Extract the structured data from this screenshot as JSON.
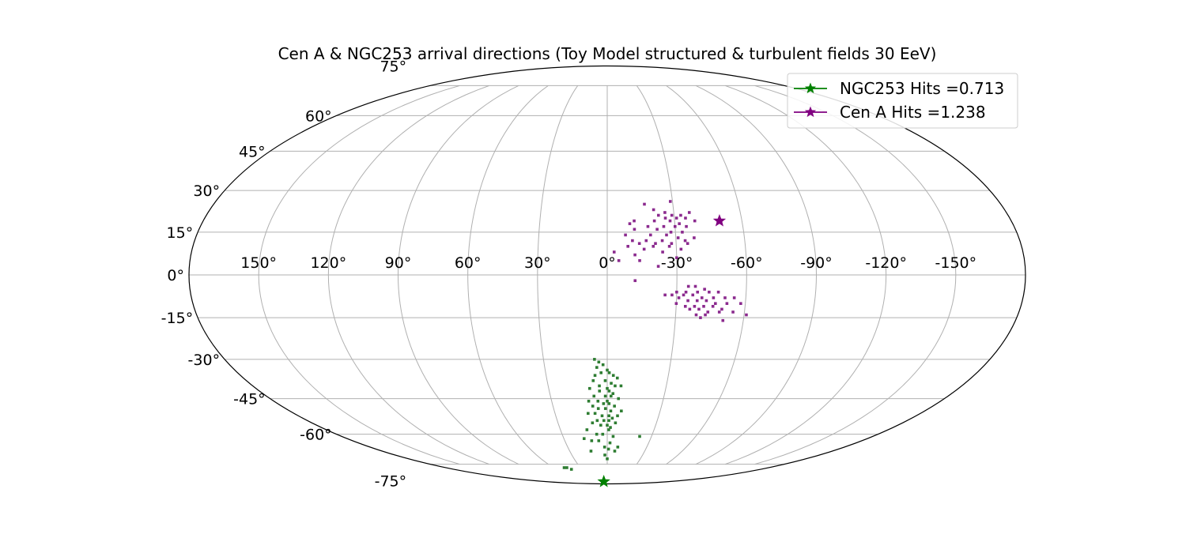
{
  "chart_data": {
    "type": "scatter",
    "projection": "mollweide",
    "title": "Cen A & NGC253 arrival directions (Toy Model structured & turbulent fields 30 EeV)",
    "x_tick_labels": [
      "150°",
      "120°",
      "90°",
      "60°",
      "30°",
      "0°",
      "-30°",
      "-60°",
      "-90°",
      "-120°",
      "-150°"
    ],
    "x_tick_values": [
      150,
      120,
      90,
      60,
      30,
      0,
      -30,
      -60,
      -90,
      -120,
      -150
    ],
    "y_tick_labels": [
      "75°",
      "60°",
      "45°",
      "30°",
      "15°",
      "0°",
      "-15°",
      "-30°",
      "-45°",
      "-60°",
      "-75°"
    ],
    "y_tick_values": [
      75,
      60,
      45,
      30,
      15,
      0,
      -15,
      -30,
      -45,
      -60,
      -75
    ],
    "xlim": [
      180,
      -180
    ],
    "ylim": [
      -90,
      90
    ],
    "grid": true,
    "legend_position": "upper-right",
    "series": [
      {
        "name": "NGC253 Hits =0.713",
        "color": "#008000",
        "scatter_color": "#2e7d32",
        "source": [
          10,
          -87
        ],
        "points": [
          [
            6,
            -30
          ],
          [
            4,
            -31
          ],
          [
            2,
            -32
          ],
          [
            5,
            -33
          ],
          [
            0,
            -34
          ],
          [
            -1,
            -35
          ],
          [
            3,
            -35
          ],
          [
            6,
            -36
          ],
          [
            -3,
            -36
          ],
          [
            -5,
            -37
          ],
          [
            7,
            -38
          ],
          [
            1,
            -38
          ],
          [
            -2,
            -39
          ],
          [
            -4,
            -40
          ],
          [
            -7,
            -40
          ],
          [
            9,
            -41
          ],
          [
            0,
            -41
          ],
          [
            4,
            -42
          ],
          [
            -1,
            -42
          ],
          [
            -3,
            -43
          ],
          [
            7,
            -44
          ],
          [
            1,
            -44
          ],
          [
            -2,
            -44
          ],
          [
            -6,
            -45
          ],
          [
            10,
            -46
          ],
          [
            5,
            -46
          ],
          [
            0,
            -46
          ],
          [
            2,
            -47
          ],
          [
            -1,
            -47
          ],
          [
            -4,
            -48
          ],
          [
            8,
            -48
          ],
          [
            5,
            -49
          ],
          [
            1,
            -49
          ],
          [
            -2,
            -50
          ],
          [
            -8,
            -50
          ],
          [
            11,
            -51
          ],
          [
            7,
            -51
          ],
          [
            3,
            -52
          ],
          [
            -1,
            -52
          ],
          [
            -3,
            -53
          ],
          [
            6,
            -54
          ],
          [
            2,
            -54
          ],
          [
            -1,
            -54
          ],
          [
            -5,
            -55
          ],
          [
            9,
            -55
          ],
          [
            4,
            -56
          ],
          [
            0,
            -56
          ],
          [
            -2,
            -57
          ],
          [
            13,
            -58
          ],
          [
            -1,
            -58
          ],
          [
            7,
            -60
          ],
          [
            3,
            -60
          ],
          [
            -4,
            -61
          ],
          [
            16,
            -62
          ],
          [
            11,
            -63
          ],
          [
            6,
            -63
          ],
          [
            -2,
            -64
          ],
          [
            -22,
            -61
          ],
          [
            2,
            -66
          ],
          [
            -1,
            -67
          ],
          [
            13,
            -68
          ],
          [
            -6,
            -68
          ],
          [
            2,
            -70
          ],
          [
            48,
            -77
          ],
          [
            45,
            -77
          ],
          [
            42,
            -78
          ],
          [
            0,
            -72
          ],
          [
            -8,
            -66
          ],
          [
            4,
            -40
          ],
          [
            -6,
            -52
          ]
        ]
      },
      {
        "name": "Cen A Hits =1.238",
        "color": "#800080",
        "scatter_color": "#8b2a8e",
        "source": [
          -50,
          19
        ],
        "points": [
          [
            -17,
            25
          ],
          [
            -29,
            26
          ],
          [
            -21,
            23
          ],
          [
            -26,
            22
          ],
          [
            -29,
            21
          ],
          [
            -33,
            21
          ],
          [
            -37,
            22
          ],
          [
            -23,
            21
          ],
          [
            -31,
            20
          ],
          [
            -26,
            20
          ],
          [
            -35,
            20
          ],
          [
            -39,
            19
          ],
          [
            -12,
            19
          ],
          [
            -21,
            19
          ],
          [
            -28,
            19
          ],
          [
            -32,
            18
          ],
          [
            -10,
            18
          ],
          [
            -18,
            17
          ],
          [
            -25,
            17
          ],
          [
            -30,
            17
          ],
          [
            -35,
            17
          ],
          [
            -12,
            16
          ],
          [
            -22,
            16
          ],
          [
            -28,
            15
          ],
          [
            -33,
            15
          ],
          [
            -8,
            14
          ],
          [
            -19,
            14
          ],
          [
            -26,
            14
          ],
          [
            -31,
            13
          ],
          [
            -38,
            13
          ],
          [
            -11,
            12
          ],
          [
            -17,
            12
          ],
          [
            -24,
            12
          ],
          [
            -34,
            12
          ],
          [
            -14,
            11
          ],
          [
            -21,
            11
          ],
          [
            -28,
            11
          ],
          [
            -35,
            11
          ],
          [
            -9,
            10
          ],
          [
            -20,
            10
          ],
          [
            -27,
            10
          ],
          [
            -32,
            9
          ],
          [
            -16,
            9
          ],
          [
            -3,
            8
          ],
          [
            -24,
            8
          ],
          [
            -12,
            7
          ],
          [
            -30,
            6
          ],
          [
            -5,
            5
          ],
          [
            -14,
            5
          ],
          [
            -22,
            3
          ],
          [
            -12,
            -2
          ],
          [
            -35,
            -4
          ],
          [
            -38,
            -4
          ],
          [
            -42,
            -5
          ],
          [
            -30,
            -6
          ],
          [
            -34,
            -6
          ],
          [
            -39,
            -6
          ],
          [
            -44,
            -6
          ],
          [
            -48,
            -6
          ],
          [
            -25,
            -7
          ],
          [
            -28,
            -7
          ],
          [
            -33,
            -7
          ],
          [
            -37,
            -7
          ],
          [
            -41,
            -8
          ],
          [
            -46,
            -8
          ],
          [
            -51,
            -8
          ],
          [
            -55,
            -8
          ],
          [
            -31,
            -8
          ],
          [
            -35,
            -9
          ],
          [
            -39,
            -9
          ],
          [
            -43,
            -9
          ],
          [
            -47,
            -10
          ],
          [
            -52,
            -10
          ],
          [
            -58,
            -10
          ],
          [
            -30,
            -10
          ],
          [
            -34,
            -11
          ],
          [
            -38,
            -11
          ],
          [
            -42,
            -11
          ],
          [
            -46,
            -11
          ],
          [
            -50,
            -12
          ],
          [
            -36,
            -12
          ],
          [
            -40,
            -12
          ],
          [
            -44,
            -13
          ],
          [
            -49,
            -13
          ],
          [
            -55,
            -13
          ],
          [
            -39,
            -14
          ],
          [
            -43,
            -14
          ],
          [
            -61,
            -14
          ],
          [
            -41,
            -15
          ],
          [
            -51,
            -16
          ]
        ]
      }
    ]
  }
}
